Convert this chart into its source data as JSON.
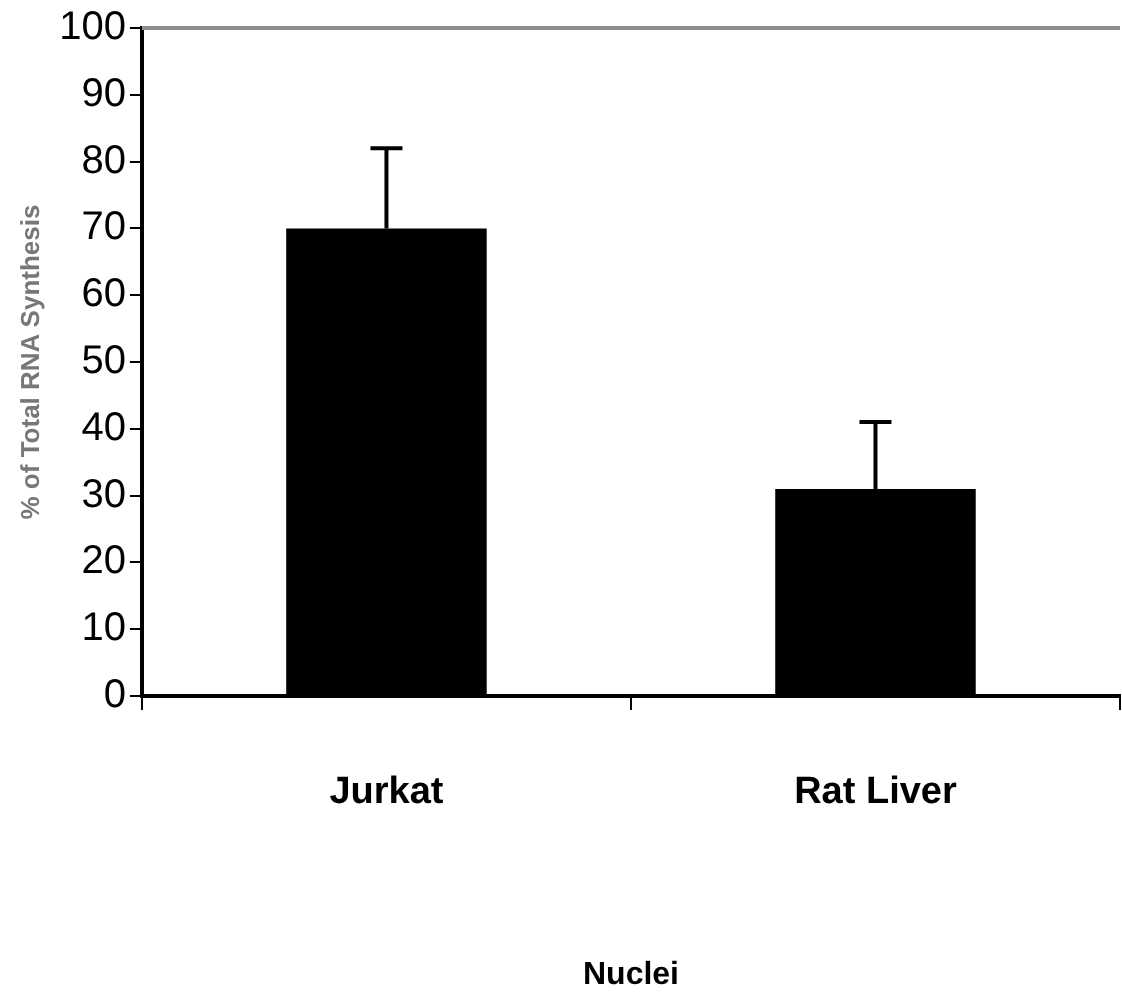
{
  "chart_data": {
    "type": "bar",
    "xlabel": "Nuclei",
    "ylabel": "% of Total RNA Synthesis",
    "categories": [
      "Jurkat",
      "Rat Liver"
    ],
    "values": [
      70,
      31
    ],
    "color": "#000000",
    "errors": [
      [
        70,
        82
      ],
      [
        31,
        41
      ]
    ],
    "ylim": [
      0,
      100
    ],
    "yticks": [
      0,
      10,
      20,
      30,
      40,
      50,
      60,
      70,
      80,
      90,
      100
    ],
    "legend": false
  }
}
